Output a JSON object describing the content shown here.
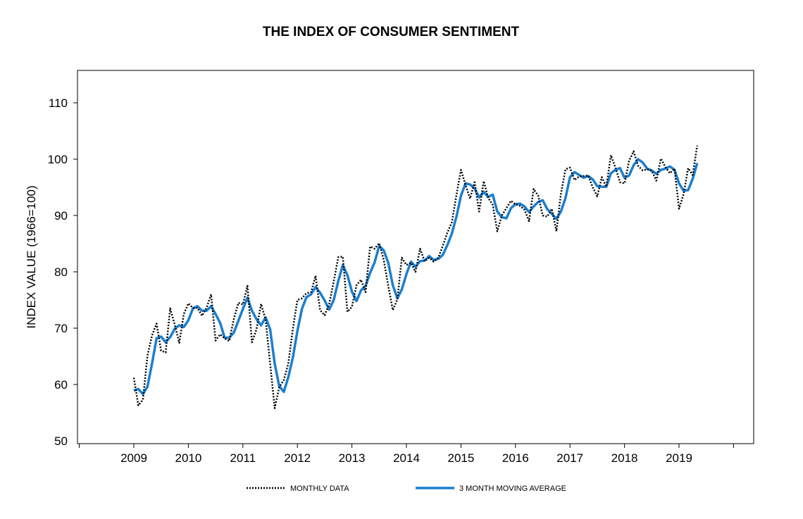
{
  "chart_data": {
    "type": "line",
    "title": "THE INDEX OF CONSUMER SENTIMENT",
    "xlabel": "",
    "ylabel": "INDEX VALUE (1966=100)",
    "ylim": [
      50,
      110
    ],
    "yticks": [
      50,
      60,
      70,
      80,
      90,
      100,
      110
    ],
    "xticks": [
      "2009",
      "2010",
      "2011",
      "2012",
      "2013",
      "2014",
      "2015",
      "2016",
      "2017",
      "2018",
      "2019"
    ],
    "x_start": "2009-01",
    "x_frequency": "monthly",
    "grid": false,
    "legend": "bottom",
    "series": [
      {
        "name": "MONTHLY DATA",
        "style": "dotted",
        "color": "#000000",
        "values": [
          61.2,
          56.3,
          57.3,
          65.1,
          68.7,
          70.8,
          66.0,
          65.7,
          73.5,
          70.6,
          67.4,
          72.5,
          74.4,
          73.6,
          73.6,
          72.2,
          73.6,
          76.0,
          67.8,
          68.9,
          68.2,
          67.7,
          71.6,
          74.5,
          74.2,
          77.5,
          67.5,
          69.8,
          74.3,
          71.5,
          63.7,
          55.8,
          59.5,
          60.8,
          63.7,
          69.9,
          75.0,
          75.3,
          76.2,
          76.4,
          79.3,
          73.2,
          72.3,
          74.3,
          78.3,
          82.6,
          82.7,
          72.9,
          73.8,
          77.6,
          78.6,
          76.4,
          84.5,
          84.1,
          85.1,
          82.1,
          77.5,
          73.2,
          75.1,
          82.5,
          81.2,
          81.6,
          80.0,
          84.1,
          81.9,
          82.5,
          81.8,
          82.5,
          84.6,
          86.9,
          88.8,
          93.6,
          98.1,
          95.4,
          93.0,
          95.9,
          90.7,
          96.1,
          93.1,
          91.9,
          87.2,
          90.0,
          91.3,
          92.6,
          92.0,
          91.7,
          91.0,
          89.0,
          94.7,
          93.5,
          90.0,
          89.8,
          91.2,
          87.2,
          93.8,
          98.2,
          98.5,
          96.3,
          96.9,
          97.0,
          97.1,
          95.0,
          93.4,
          96.8,
          95.1,
          100.7,
          98.5,
          95.9,
          95.7,
          99.7,
          101.4,
          98.8,
          98.0,
          98.2,
          97.9,
          96.2,
          100.1,
          98.6,
          97.5,
          98.3,
          91.2,
          93.8,
          98.4,
          97.2,
          102.4
        ]
      },
      {
        "name": "3 MONTH MOVING AVERAGE",
        "style": "solid",
        "color": "#1a7fd0",
        "values": [
          58.9,
          59.2,
          58.3,
          59.6,
          63.7,
          68.2,
          68.5,
          67.5,
          68.4,
          69.9,
          70.5,
          70.2,
          71.4,
          73.5,
          73.9,
          73.1,
          73.1,
          73.9,
          72.5,
          70.9,
          68.3,
          68.3,
          69.2,
          71.3,
          73.4,
          75.4,
          73.1,
          71.6,
          70.5,
          71.9,
          69.8,
          63.7,
          59.7,
          58.7,
          61.3,
          64.8,
          69.5,
          73.4,
          75.5,
          76.0,
          77.3,
          76.3,
          74.9,
          73.3,
          75.0,
          78.4,
          81.2,
          79.4,
          76.5,
          74.8,
          76.7,
          77.5,
          79.8,
          81.7,
          84.6,
          83.8,
          81.6,
          77.6,
          75.3,
          76.9,
          79.6,
          81.8,
          80.9,
          81.9,
          82.0,
          82.8,
          82.1,
          82.3,
          83.0,
          84.7,
          86.8,
          89.8,
          93.5,
          95.7,
          95.5,
          94.8,
          93.2,
          94.2,
          93.3,
          93.7,
          90.7,
          89.7,
          89.5,
          91.3,
          92.0,
          92.1,
          91.6,
          90.6,
          91.6,
          92.4,
          92.7,
          91.1,
          90.3,
          89.4,
          90.7,
          93.1,
          96.8,
          97.7,
          97.2,
          96.7,
          97.0,
          96.4,
          95.2,
          95.1,
          95.1,
          97.5,
          98.1,
          98.4,
          96.7,
          97.1,
          98.9,
          100.0,
          99.4,
          98.3,
          98.0,
          97.4,
          98.1,
          98.3,
          98.7,
          98.1,
          95.7,
          94.4,
          94.5,
          96.5,
          99.3
        ]
      }
    ]
  }
}
